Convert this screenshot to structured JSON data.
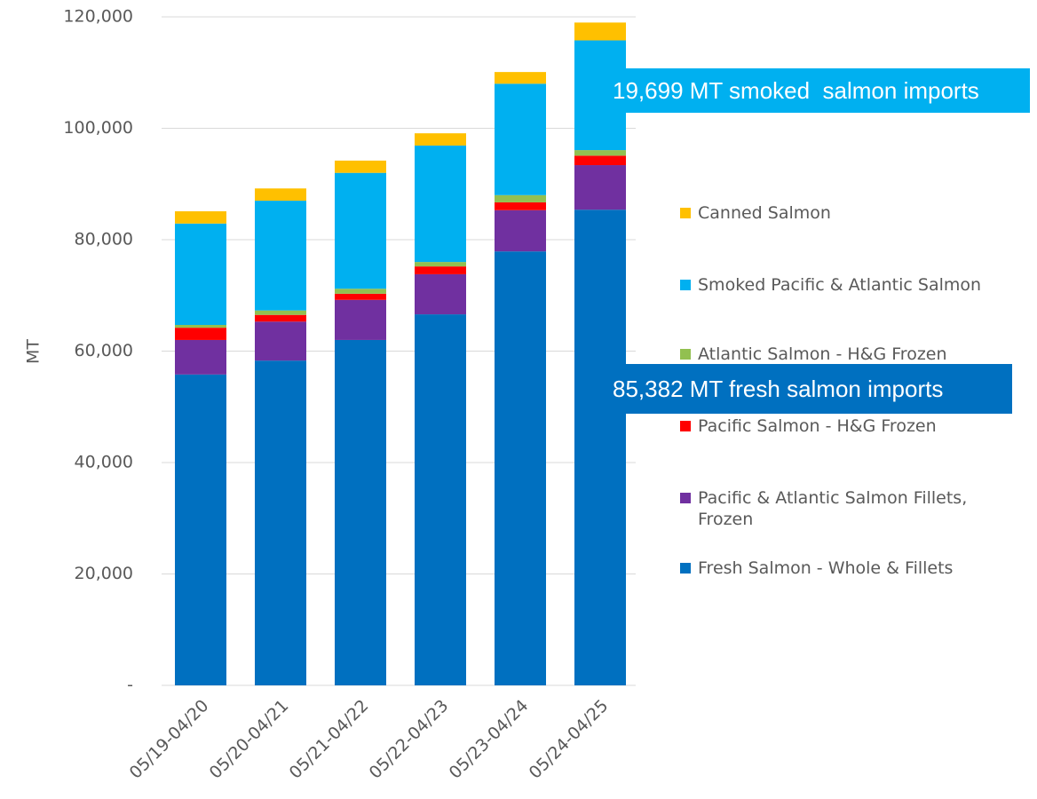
{
  "chart_data": {
    "type": "stacked_bar",
    "y_label": "MT",
    "categories": [
      "05/19-04/20",
      "05/20-04/21",
      "05/21-04/22",
      "05/22-04/23",
      "05/23-04/24",
      "05/24-04/25"
    ],
    "series": [
      {
        "name": "Fresh Salmon - Whole & Fillets",
        "color": "#0070c0",
        "values": [
          55800,
          58300,
          62000,
          66600,
          77900,
          85382
        ]
      },
      {
        "name": "Pacific & Atlantic Salmon Fillets, Frozen",
        "color": "#7030a0",
        "values": [
          6200,
          7000,
          7200,
          7200,
          7400,
          8000
        ]
      },
      {
        "name": "Pacific Salmon - H&G Frozen",
        "color": "#ff0000",
        "values": [
          2200,
          1200,
          1100,
          1400,
          1400,
          1700
        ]
      },
      {
        "name": "Atlantic Salmon - H&G Frozen",
        "color": "#92c050",
        "values": [
          500,
          800,
          900,
          800,
          1300,
          1000
        ]
      },
      {
        "name": "Smoked Pacific & Atlantic Salmon",
        "color": "#00b0f0",
        "values": [
          18200,
          19700,
          20800,
          20900,
          20000,
          19699
        ]
      },
      {
        "name": "Canned Salmon",
        "color": "#ffc000",
        "values": [
          2200,
          2200,
          2200,
          2200,
          2100,
          3200
        ]
      }
    ],
    "ylim": [
      0,
      120000
    ],
    "yticks": [
      {
        "value": 0,
        "label": "-"
      },
      {
        "value": 20000,
        "label": "20,000"
      },
      {
        "value": 40000,
        "label": "40,000"
      },
      {
        "value": 60000,
        "label": "60,000"
      },
      {
        "value": 80000,
        "label": "80,000"
      },
      {
        "value": 100000,
        "label": "100,000"
      },
      {
        "value": 120000,
        "label": "120,000"
      }
    ],
    "grid": true,
    "legend": "right",
    "annotations": [
      {
        "text": "19,699 MT smoked  salmon imports",
        "color": "#00b0f0"
      },
      {
        "text": "85,382 MT fresh salmon imports",
        "color": "#0070c0"
      }
    ]
  }
}
